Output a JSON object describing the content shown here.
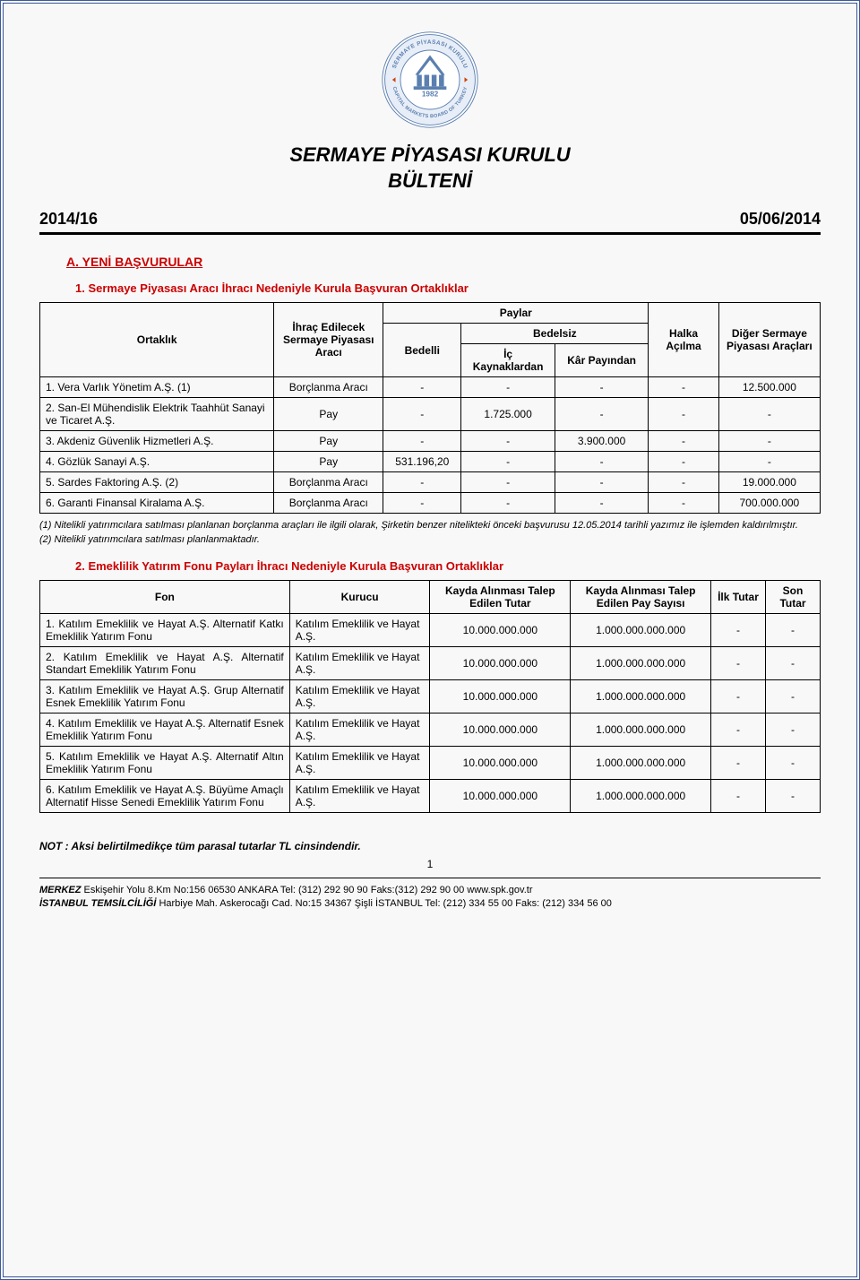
{
  "logo": {
    "outer_text_top": "SERMAYE PİYASASI KURULU",
    "outer_text_bottom": "CAPITAL MARKETS BOARD OF TURKEY",
    "year": "1982",
    "ring_color": "#b8c9e0",
    "inner_color": "#5b7fb0",
    "text_color": "#5b7fb0"
  },
  "title_line1": "SERMAYE PİYASASI KURULU",
  "title_line2": "BÜLTENİ",
  "issue": "2014/16",
  "date": "05/06/2014",
  "section_a": "A.   YENİ BAŞVURULAR",
  "sub1": "1.  Sermaye Piyasası Aracı İhracı Nedeniyle Kurula Başvuran Ortaklıklar",
  "table1": {
    "headers": {
      "ortaklik": "Ortaklık",
      "ihrac": "İhraç Edilecek Sermaye Piyasası Aracı",
      "paylar": "Paylar",
      "bedelli": "Bedelli",
      "bedelsiz": "Bedelsiz",
      "ic": "İç Kaynaklardan",
      "kar": "Kâr Payından",
      "halka": "Halka Açılma",
      "diger": "Diğer Sermaye Piyasası Araçları"
    },
    "rows": [
      {
        "no": "1.",
        "name": "Vera Varlık Yönetim A.Ş. (1)",
        "arac": "Borçlanma Aracı",
        "bedelli": "-",
        "ic": "-",
        "kar": "-",
        "halka": "-",
        "diger": "12.500.000"
      },
      {
        "no": "2.",
        "name": "San-El Mühendislik Elektrik Taahhüt Sanayi ve Ticaret A.Ş.",
        "arac": "Pay",
        "bedelli": "-",
        "ic": "1.725.000",
        "kar": "-",
        "halka": "-",
        "diger": "-"
      },
      {
        "no": "3.",
        "name": "Akdeniz Güvenlik Hizmetleri A.Ş.",
        "arac": "Pay",
        "bedelli": "-",
        "ic": "-",
        "kar": "3.900.000",
        "halka": "-",
        "diger": "-"
      },
      {
        "no": "4.",
        "name": "Gözlük Sanayi A.Ş.",
        "arac": "Pay",
        "bedelli": "531.196,20",
        "ic": "-",
        "kar": "-",
        "halka": "-",
        "diger": "-"
      },
      {
        "no": "5.",
        "name": "Sardes Faktoring A.Ş. (2)",
        "arac": "Borçlanma Aracı",
        "bedelli": "-",
        "ic": "-",
        "kar": "-",
        "halka": "-",
        "diger": "19.000.000"
      },
      {
        "no": "6.",
        "name": "Garanti Finansal Kiralama A.Ş.",
        "arac": "Borçlanma Aracı",
        "bedelli": "-",
        "ic": "-",
        "kar": "-",
        "halka": "-",
        "diger": "700.000.000"
      }
    ]
  },
  "footnote1": "(1) Nitelikli yatırımcılara satılması planlanan borçlanma araçları ile ilgili olarak, Şirketin benzer nitelikteki önceki başvurusu 12.05.2014 tarihli yazımız ile işlemden kaldırılmıştır.",
  "footnote2": "(2) Nitelikli yatırımcılara satılması planlanmaktadır.",
  "sub2": "2.   Emeklilik Yatırım Fonu Payları İhracı Nedeniyle Kurula Başvuran Ortaklıklar",
  "table2": {
    "headers": {
      "fon": "Fon",
      "kurucu": "Kurucu",
      "talep_tutar": "Kayda Alınması Talep Edilen Tutar",
      "talep_pay": "Kayda Alınması Talep Edilen Pay Sayısı",
      "ilk": "İlk Tutar",
      "son": "Son Tutar"
    },
    "rows": [
      {
        "no": "1.",
        "fon": "Katılım Emeklilik ve Hayat A.Ş. Alternatif Katkı Emeklilik Yatırım Fonu",
        "kurucu": "Katılım Emeklilik ve Hayat A.Ş.",
        "tutar": "10.000.000.000",
        "pay": "1.000.000.000.000",
        "ilk": "-",
        "son": "-"
      },
      {
        "no": "2.",
        "fon": "Katılım Emeklilik ve Hayat A.Ş. Alternatif Standart Emeklilik Yatırım Fonu",
        "kurucu": "Katılım Emeklilik ve Hayat A.Ş.",
        "tutar": "10.000.000.000",
        "pay": "1.000.000.000.000",
        "ilk": "-",
        "son": "-"
      },
      {
        "no": "3.",
        "fon": "Katılım Emeklilik ve Hayat A.Ş. Grup Alternatif Esnek Emeklilik Yatırım Fonu",
        "kurucu": "Katılım Emeklilik ve Hayat A.Ş.",
        "tutar": "10.000.000.000",
        "pay": "1.000.000.000.000",
        "ilk": "-",
        "son": "-"
      },
      {
        "no": "4.",
        "fon": "Katılım Emeklilik ve Hayat A.Ş. Alternatif Esnek Emeklilik Yatırım Fonu",
        "kurucu": "Katılım Emeklilik ve Hayat A.Ş.",
        "tutar": "10.000.000.000",
        "pay": "1.000.000.000.000",
        "ilk": "-",
        "son": "-"
      },
      {
        "no": "5.",
        "fon": "Katılım Emeklilik ve Hayat A.Ş. Alternatif Altın Emeklilik Yatırım Fonu",
        "kurucu": "Katılım Emeklilik ve Hayat A.Ş.",
        "tutar": "10.000.000.000",
        "pay": "1.000.000.000.000",
        "ilk": "-",
        "son": "-"
      },
      {
        "no": "6.",
        "fon": "Katılım Emeklilik ve Hayat A.Ş. Büyüme Amaçlı Alternatif Hisse Senedi Emeklilik Yatırım Fonu",
        "kurucu": "Katılım Emeklilik ve Hayat A.Ş.",
        "tutar": "10.000.000.000",
        "pay": "1.000.000.000.000",
        "ilk": "-",
        "son": "-"
      }
    ]
  },
  "note": "NOT : Aksi belirtilmedikçe tüm parasal tutarlar TL cinsindendir.",
  "page_number": "1",
  "footer": {
    "merkez_label": "MERKEZ ",
    "merkez": "Eskişehir Yolu 8.Km No:156 06530 ANKARA Tel: (312) 292 90 90 Faks:(312) 292 90 00 www.spk.gov.tr",
    "istanbul_label": "İSTANBUL TEMSİLCİLİĞİ ",
    "istanbul": "Harbiye Mah. Askerocağı Cad. No:15 34367 Şişli İSTANBUL Tel: (212) 334 55 00 Faks: (212) 334 56 00"
  }
}
